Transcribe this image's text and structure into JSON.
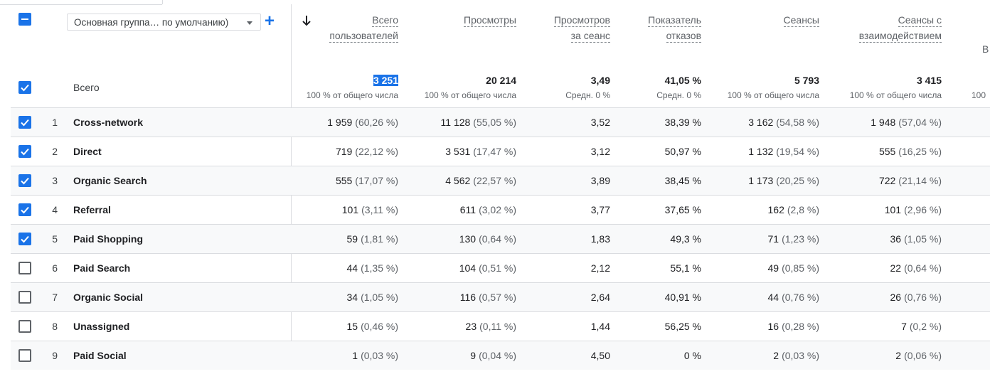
{
  "toolbar": {
    "dimension_dropdown": "Основная группа… по умолчанию)",
    "add_icon": "plus-icon",
    "sort_icon": "arrow-down-icon"
  },
  "columns": [
    {
      "line1": "Всего",
      "line2": "пользователей"
    },
    {
      "line1": "Просмотры",
      "line2": ""
    },
    {
      "line1": "Просмотров",
      "line2": "за сеанс"
    },
    {
      "line1": "Показатель",
      "line2": "отказов"
    },
    {
      "line1": "Сеансы",
      "line2": ""
    },
    {
      "line1": "Сеансы с",
      "line2": "взаимодействием"
    }
  ],
  "truncated_header": "В",
  "totals": {
    "label": "Всего",
    "values": [
      "3 251",
      "20 214",
      "3,49",
      "41,05 %",
      "5 793",
      "3 415"
    ],
    "subs": [
      "100 % от общего числа",
      "100 % от общего числа",
      "Средн. 0 %",
      "Средн. 0 %",
      "100 % от общего числа",
      "100 % от общего числа"
    ],
    "truncated_sub": "100"
  },
  "rows": [
    {
      "idx": "1",
      "name": "Cross-network",
      "checked": true,
      "users": "1 959",
      "users_pct": "(60,26 %)",
      "views": "11 128",
      "views_pct": "(55,05 %)",
      "vps": "3,52",
      "bounce": "38,39 %",
      "sessions": "3 162",
      "sessions_pct": "(54,58 %)",
      "engaged": "1 948",
      "engaged_pct": "(57,04 %)"
    },
    {
      "idx": "2",
      "name": "Direct",
      "checked": true,
      "users": "719",
      "users_pct": "(22,12 %)",
      "views": "3 531",
      "views_pct": "(17,47 %)",
      "vps": "3,12",
      "bounce": "50,97 %",
      "sessions": "1 132",
      "sessions_pct": "(19,54 %)",
      "engaged": "555",
      "engaged_pct": "(16,25 %)"
    },
    {
      "idx": "3",
      "name": "Organic Search",
      "checked": true,
      "users": "555",
      "users_pct": "(17,07 %)",
      "views": "4 562",
      "views_pct": "(22,57 %)",
      "vps": "3,89",
      "bounce": "38,45 %",
      "sessions": "1 173",
      "sessions_pct": "(20,25 %)",
      "engaged": "722",
      "engaged_pct": "(21,14 %)"
    },
    {
      "idx": "4",
      "name": "Referral",
      "checked": true,
      "users": "101",
      "users_pct": "(3,11 %)",
      "views": "611",
      "views_pct": "(3,02 %)",
      "vps": "3,77",
      "bounce": "37,65 %",
      "sessions": "162",
      "sessions_pct": "(2,8 %)",
      "engaged": "101",
      "engaged_pct": "(2,96 %)"
    },
    {
      "idx": "5",
      "name": "Paid Shopping",
      "checked": true,
      "users": "59",
      "users_pct": "(1,81 %)",
      "views": "130",
      "views_pct": "(0,64 %)",
      "vps": "1,83",
      "bounce": "49,3 %",
      "sessions": "71",
      "sessions_pct": "(1,23 %)",
      "engaged": "36",
      "engaged_pct": "(1,05 %)"
    },
    {
      "idx": "6",
      "name": "Paid Search",
      "checked": false,
      "users": "44",
      "users_pct": "(1,35 %)",
      "views": "104",
      "views_pct": "(0,51 %)",
      "vps": "2,12",
      "bounce": "55,1 %",
      "sessions": "49",
      "sessions_pct": "(0,85 %)",
      "engaged": "22",
      "engaged_pct": "(0,64 %)"
    },
    {
      "idx": "7",
      "name": "Organic Social",
      "checked": false,
      "users": "34",
      "users_pct": "(1,05 %)",
      "views": "116",
      "views_pct": "(0,57 %)",
      "vps": "2,64",
      "bounce": "40,91 %",
      "sessions": "44",
      "sessions_pct": "(0,76 %)",
      "engaged": "26",
      "engaged_pct": "(0,76 %)"
    },
    {
      "idx": "8",
      "name": "Unassigned",
      "checked": false,
      "users": "15",
      "users_pct": "(0,46 %)",
      "views": "23",
      "views_pct": "(0,11 %)",
      "vps": "1,44",
      "bounce": "56,25 %",
      "sessions": "16",
      "sessions_pct": "(0,28 %)",
      "engaged": "7",
      "engaged_pct": "(0,2 %)"
    },
    {
      "idx": "9",
      "name": "Paid Social",
      "checked": false,
      "users": "1",
      "users_pct": "(0,03 %)",
      "views": "9",
      "views_pct": "(0,04 %)",
      "vps": "4,50",
      "bounce": "0 %",
      "sessions": "2",
      "sessions_pct": "(0,03 %)",
      "engaged": "2",
      "engaged_pct": "(0,06 %)"
    }
  ],
  "colors": {
    "accent": "#1a73e8",
    "row_alt": "#f8f9fa",
    "divider": "#dadce0"
  }
}
